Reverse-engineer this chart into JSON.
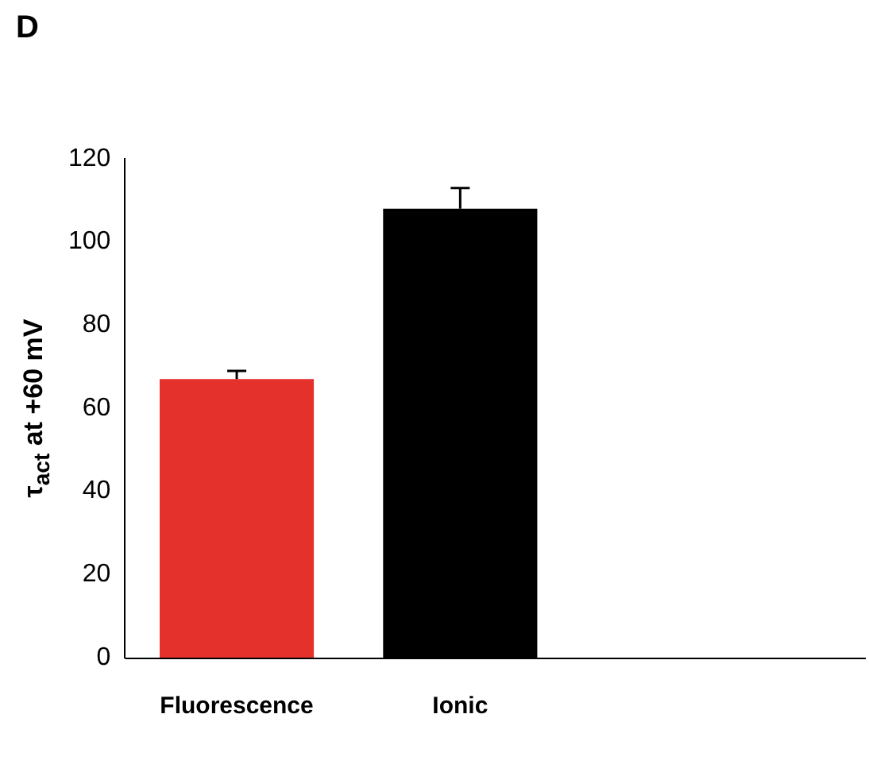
{
  "chart_data": {
    "type": "bar",
    "title": "D",
    "ylabel": "τ$_{act}$ at +60 mV",
    "categories": [
      "Fluorescence",
      "Ionic"
    ],
    "values": [
      67,
      108
    ],
    "colors": [
      "#e4312b",
      "#000000"
    ],
    "errors": [
      [
        67,
        69
      ],
      [
        108,
        113
      ]
    ],
    "ylim": [
      0,
      120
    ],
    "yticks": [
      0,
      20,
      40,
      60,
      80,
      100,
      120
    ],
    "grid": false,
    "legend": false
  }
}
